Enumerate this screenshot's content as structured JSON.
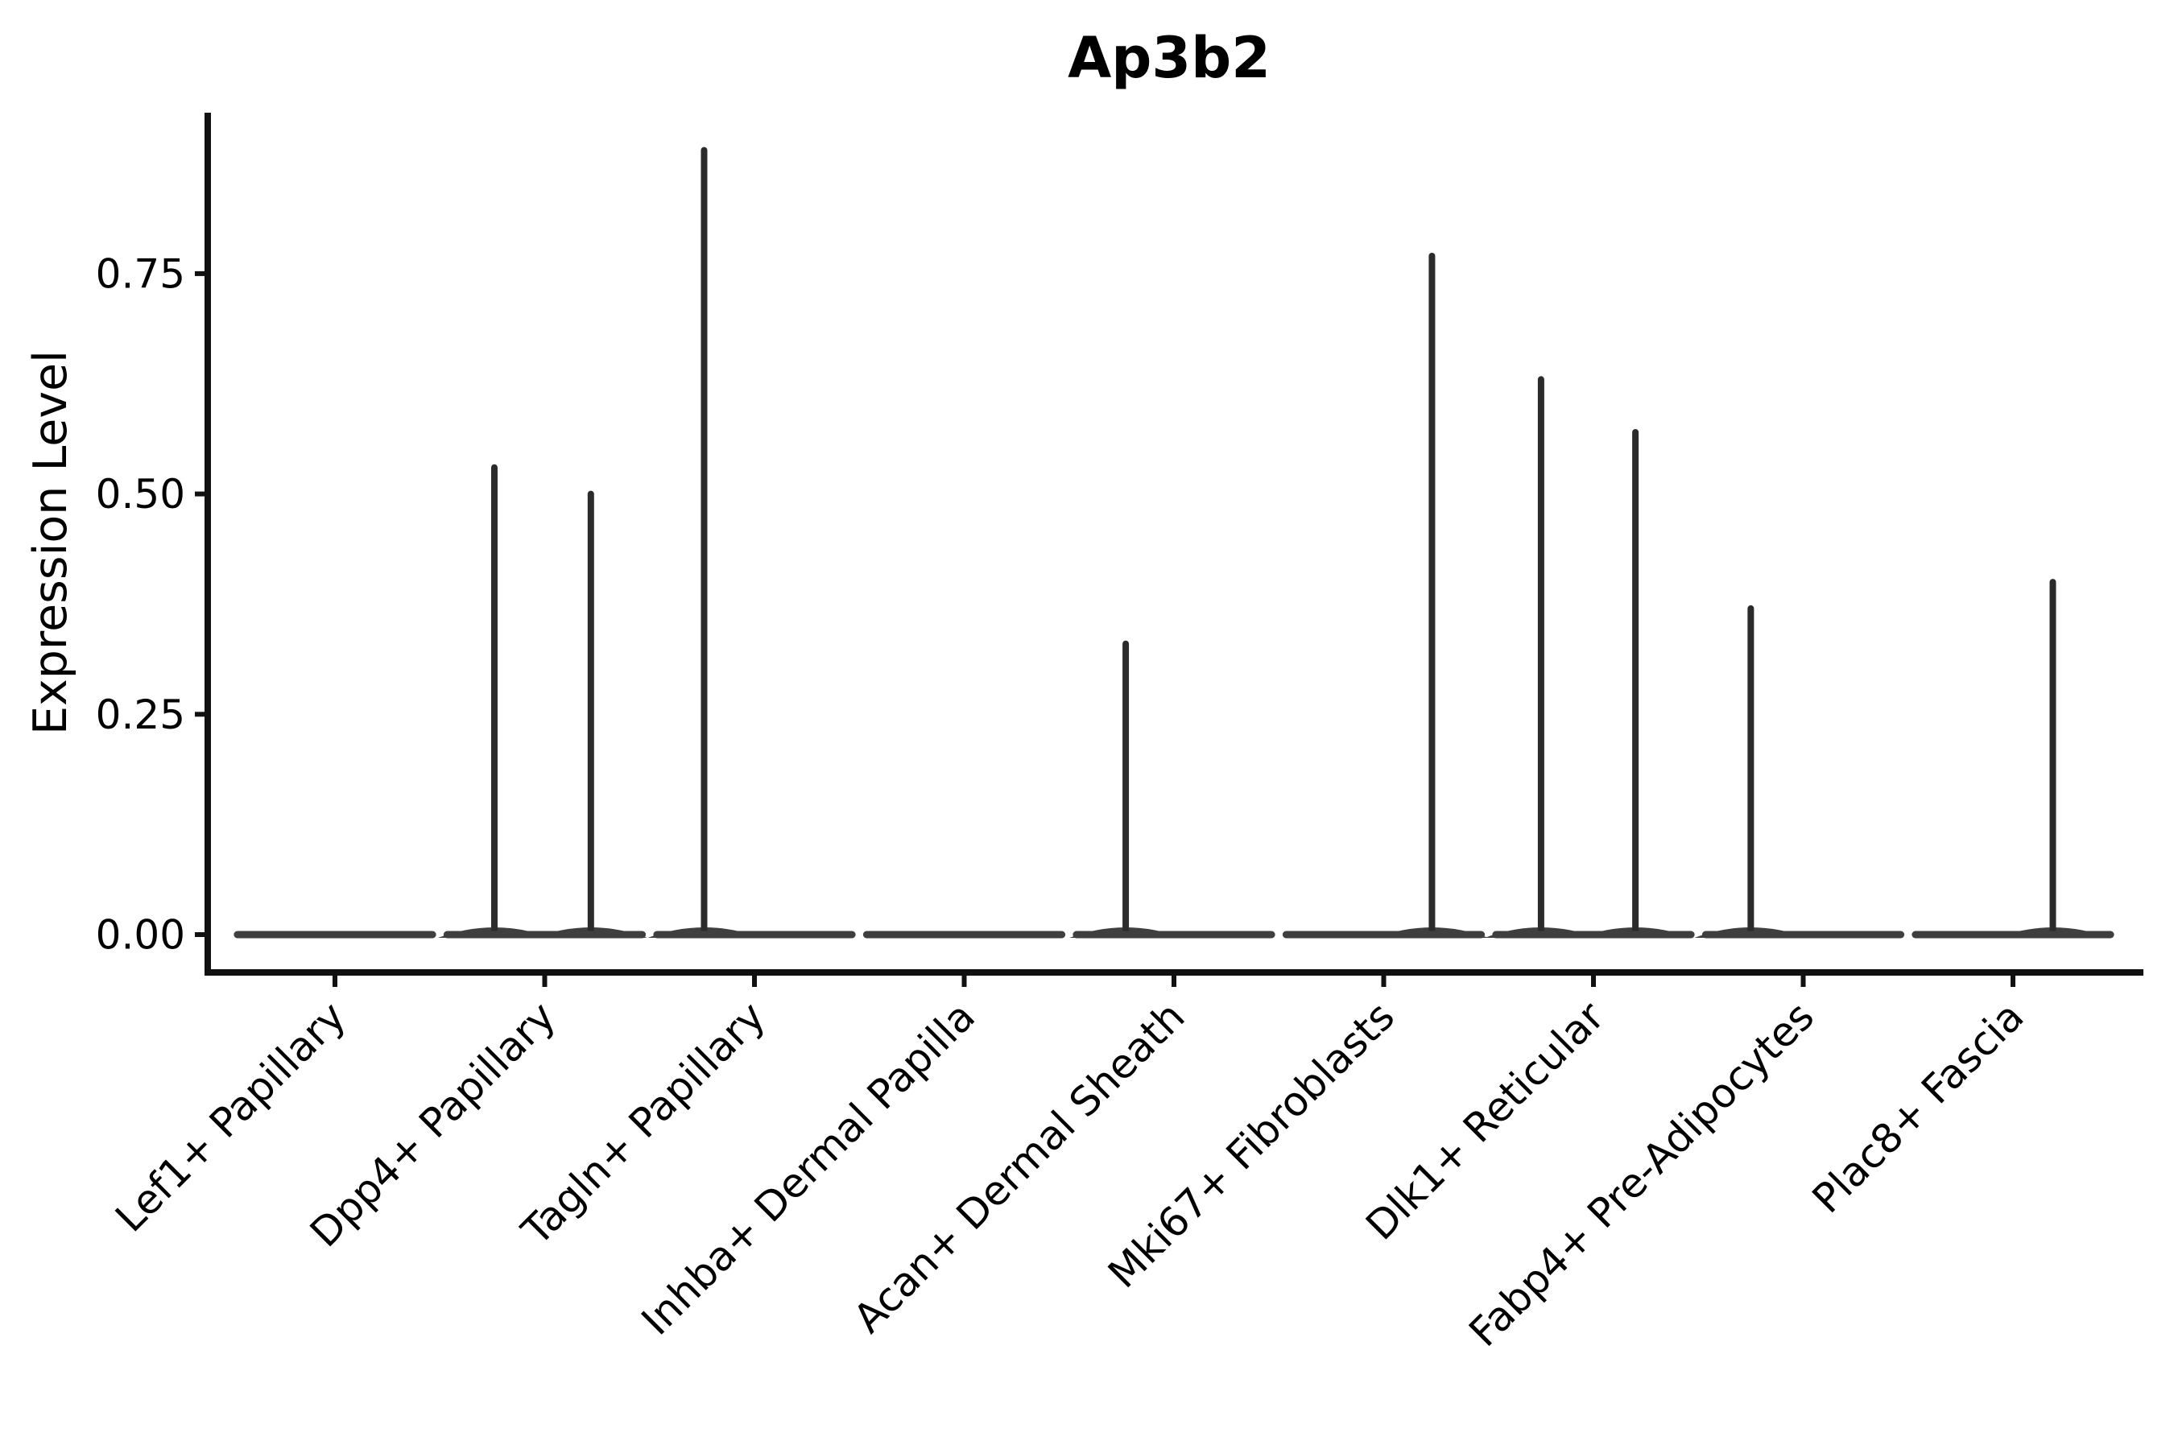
{
  "chart_data": {
    "type": "violin",
    "title": "Ap3b2",
    "xlabel": "",
    "ylabel": "Expression Level",
    "ytick_labels": [
      "0.00",
      "0.25",
      "0.50",
      "0.75"
    ],
    "ytick_values": [
      0,
      0.25,
      0.5,
      0.75
    ],
    "ylim": [
      0,
      0.93
    ],
    "grid": "off",
    "legend": "none",
    "categories": [
      "Lef1+ Papillary",
      "Dpp4+ Papillary",
      "Tagln+ Papillary",
      "Inhba+ Dermal Papilla",
      "Acan+ Dermal Sheath",
      "Mki67+ Fibroblasts",
      "Dlk1+ Reticular",
      "Fabp4+ Pre-Adipocytes",
      "Plac8+ Fascia"
    ],
    "violin_width": 0.93,
    "violins": [
      {
        "category": "Lef1+ Papillary",
        "baseline_value": 0,
        "spikes": []
      },
      {
        "category": "Dpp4+ Papillary",
        "baseline_value": 0,
        "spikes": [
          {
            "offset": -0.24,
            "value": 0.53
          },
          {
            "offset": 0.22,
            "value": 0.5
          }
        ]
      },
      {
        "category": "Tagln+ Papillary",
        "baseline_value": 0,
        "spikes": [
          {
            "offset": -0.24,
            "value": 0.89
          }
        ]
      },
      {
        "category": "Inhba+ Dermal Papilla",
        "baseline_value": 0,
        "spikes": []
      },
      {
        "category": "Acan+ Dermal Sheath",
        "baseline_value": 0,
        "spikes": [
          {
            "offset": -0.23,
            "value": 0.33
          }
        ]
      },
      {
        "category": "Mki67+ Fibroblasts",
        "baseline_value": 0,
        "spikes": [
          {
            "offset": 0.23,
            "value": 0.77
          }
        ]
      },
      {
        "category": "Dlk1+ Reticular",
        "baseline_value": 0,
        "spikes": [
          {
            "offset": -0.25,
            "value": 0.63
          },
          {
            "offset": 0.2,
            "value": 0.57
          }
        ]
      },
      {
        "category": "Fabp4+ Pre-Adipocytes",
        "baseline_value": 0,
        "spikes": [
          {
            "offset": -0.25,
            "value": 0.37
          }
        ]
      },
      {
        "category": "Plac8+ Fascia",
        "baseline_value": 0,
        "spikes": [
          {
            "offset": 0.19,
            "value": 0.4
          }
        ]
      }
    ],
    "colors": {
      "violin": "#3f3f3f",
      "spike": "#2b2b2b",
      "axis": "#111111",
      "text": "#000000",
      "background": "#ffffff"
    }
  }
}
